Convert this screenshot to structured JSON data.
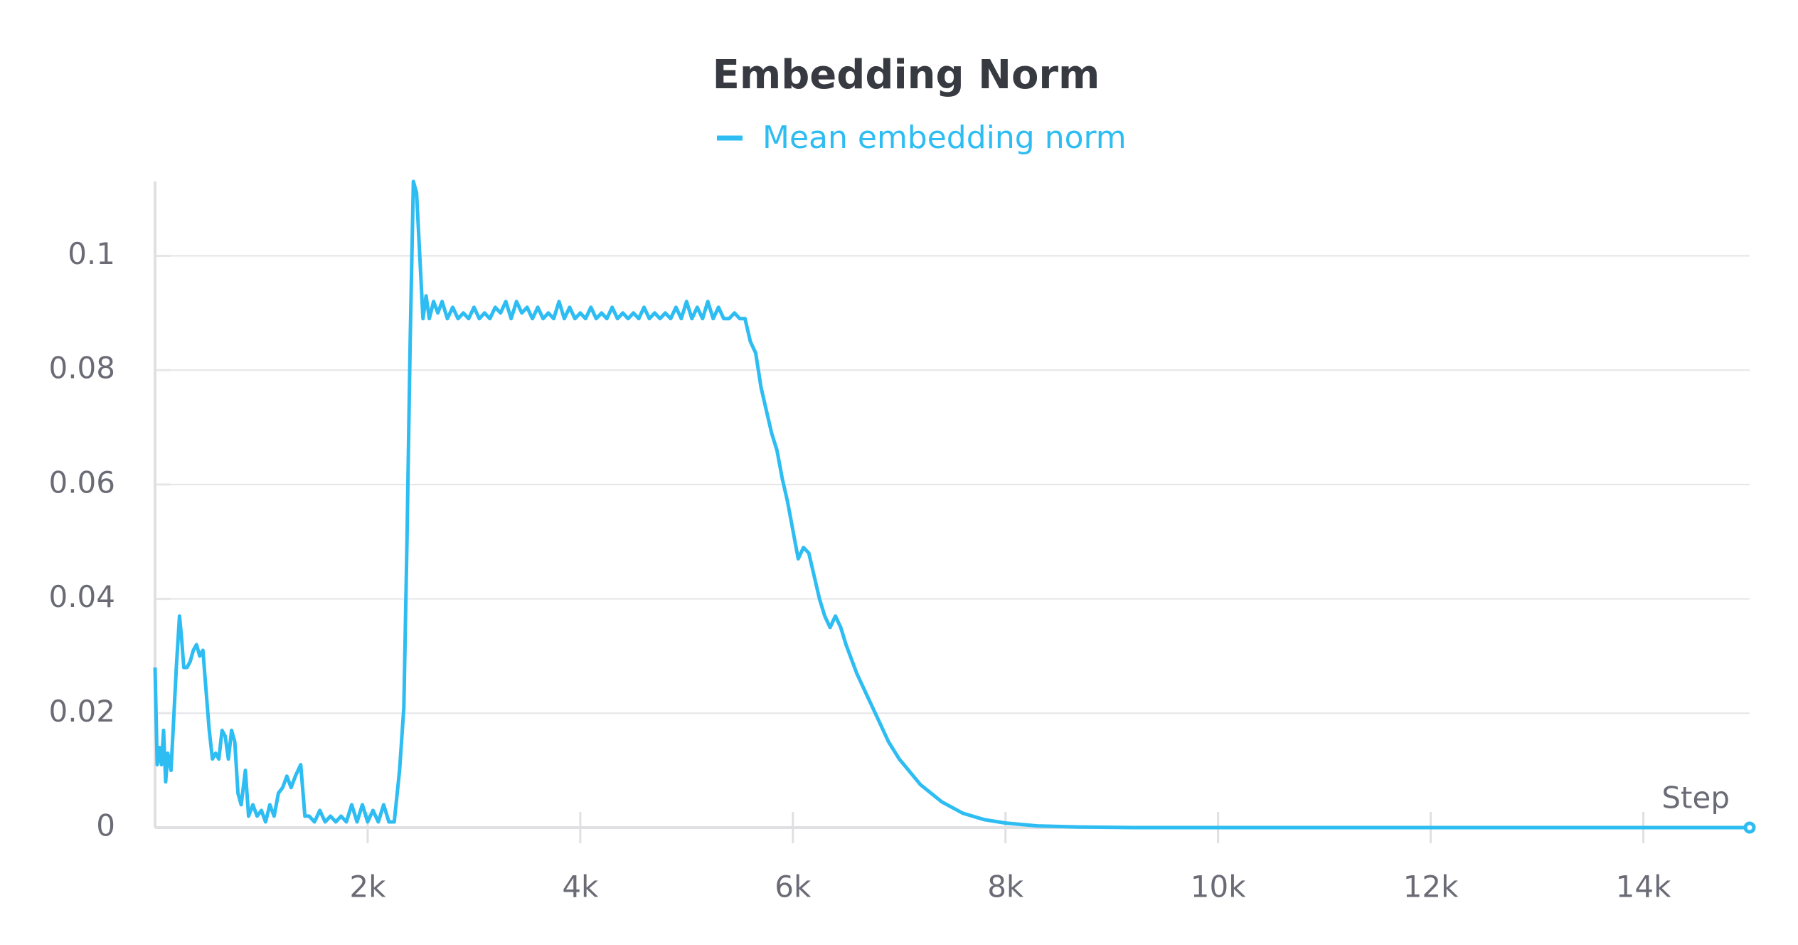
{
  "chart_data": {
    "type": "line",
    "title": "Embedding Norm",
    "x_label": "Step",
    "x": [
      0,
      20,
      40,
      60,
      80,
      100,
      120,
      150,
      170,
      200,
      230,
      250,
      270,
      300,
      330,
      360,
      390,
      420,
      450,
      480,
      510,
      540,
      570,
      600,
      630,
      660,
      690,
      720,
      750,
      780,
      810,
      850,
      880,
      920,
      960,
      1000,
      1040,
      1080,
      1120,
      1160,
      1200,
      1240,
      1280,
      1320,
      1370,
      1410,
      1450,
      1500,
      1550,
      1600,
      1650,
      1700,
      1750,
      1800,
      1850,
      1900,
      1950,
      2000,
      2050,
      2100,
      2150,
      2200,
      2250,
      2300,
      2340,
      2370,
      2400,
      2430,
      2460,
      2490,
      2520,
      2550,
      2580,
      2620,
      2660,
      2700,
      2750,
      2800,
      2850,
      2900,
      2950,
      3000,
      3050,
      3100,
      3150,
      3200,
      3250,
      3300,
      3350,
      3400,
      3450,
      3500,
      3550,
      3600,
      3650,
      3700,
      3750,
      3800,
      3850,
      3900,
      3950,
      4000,
      4050,
      4100,
      4150,
      4200,
      4250,
      4300,
      4350,
      4400,
      4450,
      4500,
      4550,
      4600,
      4650,
      4700,
      4750,
      4800,
      4850,
      4900,
      4950,
      5000,
      5050,
      5100,
      5150,
      5200,
      5250,
      5300,
      5350,
      5400,
      5450,
      5500,
      5550,
      5600,
      5650,
      5700,
      5750,
      5800,
      5850,
      5900,
      5950,
      6000,
      6050,
      6100,
      6150,
      6200,
      6250,
      6300,
      6350,
      6400,
      6450,
      6500,
      6600,
      6700,
      6800,
      6900,
      7000,
      7200,
      7400,
      7600,
      7800,
      8000,
      8300,
      8700,
      9200,
      10000,
      12000,
      15000
    ],
    "series": [
      {
        "name": "Mean embedding norm",
        "color": "#2ebdf2",
        "values": [
          0.028,
          0.011,
          0.014,
          0.011,
          0.017,
          0.008,
          0.013,
          0.01,
          0.017,
          0.028,
          0.037,
          0.033,
          0.028,
          0.028,
          0.029,
          0.031,
          0.032,
          0.03,
          0.031,
          0.024,
          0.017,
          0.012,
          0.013,
          0.012,
          0.017,
          0.016,
          0.012,
          0.017,
          0.015,
          0.006,
          0.004,
          0.01,
          0.002,
          0.004,
          0.002,
          0.003,
          0.001,
          0.004,
          0.002,
          0.006,
          0.007,
          0.009,
          0.007,
          0.009,
          0.011,
          0.002,
          0.002,
          0.001,
          0.003,
          0.001,
          0.002,
          0.001,
          0.002,
          0.001,
          0.004,
          0.001,
          0.004,
          0.001,
          0.003,
          0.001,
          0.004,
          0.001,
          0.001,
          0.01,
          0.021,
          0.05,
          0.085,
          0.113,
          0.111,
          0.1,
          0.089,
          0.093,
          0.089,
          0.092,
          0.09,
          0.092,
          0.089,
          0.091,
          0.089,
          0.09,
          0.089,
          0.091,
          0.089,
          0.09,
          0.089,
          0.091,
          0.09,
          0.092,
          0.089,
          0.092,
          0.09,
          0.091,
          0.089,
          0.091,
          0.089,
          0.09,
          0.089,
          0.092,
          0.089,
          0.091,
          0.089,
          0.09,
          0.089,
          0.091,
          0.089,
          0.09,
          0.089,
          0.091,
          0.089,
          0.09,
          0.089,
          0.09,
          0.089,
          0.091,
          0.089,
          0.09,
          0.089,
          0.09,
          0.089,
          0.091,
          0.089,
          0.092,
          0.089,
          0.091,
          0.089,
          0.092,
          0.089,
          0.091,
          0.089,
          0.089,
          0.09,
          0.089,
          0.089,
          0.085,
          0.083,
          0.077,
          0.073,
          0.069,
          0.066,
          0.061,
          0.057,
          0.052,
          0.047,
          0.049,
          0.048,
          0.044,
          0.04,
          0.037,
          0.035,
          0.037,
          0.035,
          0.032,
          0.027,
          0.023,
          0.019,
          0.015,
          0.012,
          0.0075,
          0.0045,
          0.0025,
          0.0014,
          0.0008,
          0.0003,
          0.0001,
          0,
          0,
          0,
          0
        ]
      }
    ],
    "xlim": [
      0,
      15000
    ],
    "ylim": [
      0,
      0.113
    ],
    "xticks": [
      {
        "value": 2000,
        "label": "2k"
      },
      {
        "value": 4000,
        "label": "4k"
      },
      {
        "value": 6000,
        "label": "6k"
      },
      {
        "value": 8000,
        "label": "8k"
      },
      {
        "value": 10000,
        "label": "10k"
      },
      {
        "value": 12000,
        "label": "12k"
      },
      {
        "value": 14000,
        "label": "14k"
      }
    ],
    "yticks": [
      0,
      0.02,
      0.04,
      0.06,
      0.08,
      0.1
    ],
    "grid": true
  }
}
